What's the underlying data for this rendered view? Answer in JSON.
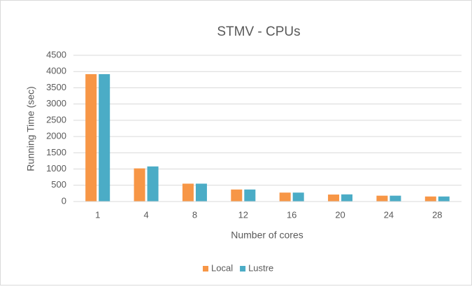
{
  "chart_data": {
    "type": "bar",
    "title": "STMV - CPUs",
    "x_label": "Number of cores",
    "y_label": "Running Time (sec)",
    "categories": [
      "1",
      "4",
      "8",
      "12",
      "16",
      "20",
      "24",
      "28"
    ],
    "series": [
      {
        "name": "Local",
        "color": "#f79646",
        "values": [
          3920,
          1020,
          550,
          370,
          275,
          215,
          180,
          155
        ]
      },
      {
        "name": "Lustre",
        "color": "#4bacc6",
        "values": [
          3920,
          1080,
          550,
          370,
          275,
          220,
          180,
          155
        ]
      }
    ],
    "ylim": [
      0,
      4500
    ],
    "yticks": [
      0,
      500,
      1000,
      1500,
      2000,
      2500,
      3000,
      3500,
      4000,
      4500
    ],
    "grid": true,
    "legend": "bottom"
  }
}
